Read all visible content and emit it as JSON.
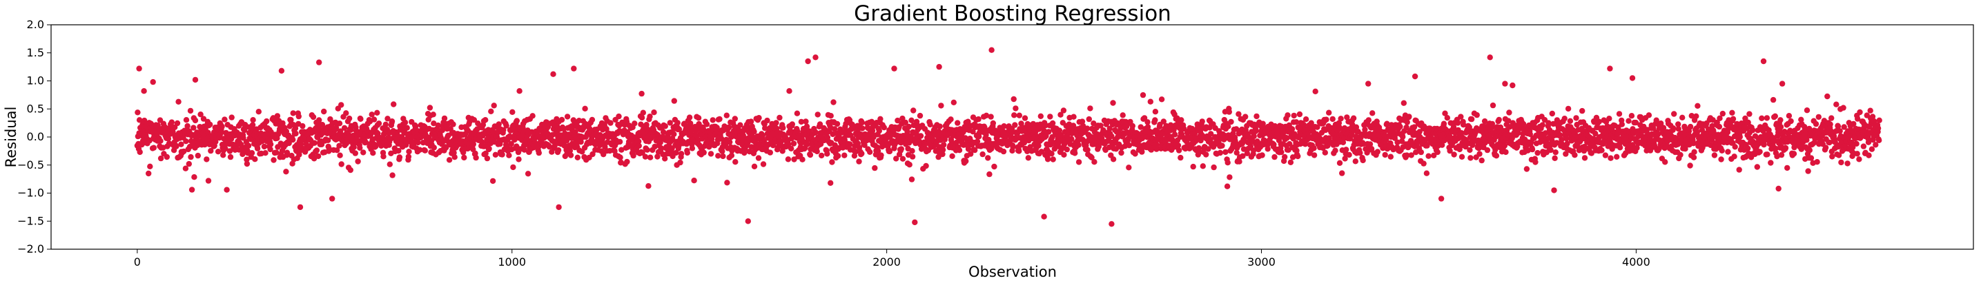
{
  "chart_data": {
    "type": "scatter",
    "title": "Gradient Boosting Regression",
    "xlabel": "Observation",
    "ylabel": "Residual",
    "xlim": [
      -230,
      4900
    ],
    "ylim": [
      -2.0,
      2.0
    ],
    "xticks": [
      0,
      1000,
      2000,
      3000,
      4000
    ],
    "xtick_labels": [
      "0",
      "1000",
      "2000",
      "3000",
      "4000"
    ],
    "yticks": [
      -2.0,
      -1.5,
      -1.0,
      -0.5,
      0.0,
      0.5,
      1.0,
      1.5,
      2.0
    ],
    "ytick_labels": [
      "−2.0",
      "−1.5",
      "−1.0",
      "−0.5",
      "0.0",
      "0.5",
      "1.0",
      "1.5",
      "2.0"
    ],
    "grid": false,
    "color": "#dc143c",
    "n_points": 4650,
    "typical_spread_sd": 0.18,
    "outliers": [
      {
        "x": 5,
        "y": 1.22
      },
      {
        "x": 18,
        "y": 0.82
      },
      {
        "x": 30,
        "y": -0.65
      },
      {
        "x": 42,
        "y": 0.98
      },
      {
        "x": 155,
        "y": 1.02
      },
      {
        "x": 190,
        "y": -0.78
      },
      {
        "x": 385,
        "y": 1.18
      },
      {
        "x": 435,
        "y": -1.25
      },
      {
        "x": 485,
        "y": 1.33
      },
      {
        "x": 520,
        "y": -1.1
      },
      {
        "x": 1020,
        "y": 0.82
      },
      {
        "x": 1110,
        "y": 1.12
      },
      {
        "x": 1125,
        "y": -1.25
      },
      {
        "x": 1165,
        "y": 1.22
      },
      {
        "x": 1630,
        "y": -1.5
      },
      {
        "x": 1740,
        "y": 0.82
      },
      {
        "x": 1790,
        "y": 1.35
      },
      {
        "x": 1810,
        "y": 1.42
      },
      {
        "x": 1850,
        "y": -0.82
      },
      {
        "x": 2020,
        "y": 1.22
      },
      {
        "x": 2075,
        "y": -1.52
      },
      {
        "x": 2140,
        "y": 1.25
      },
      {
        "x": 2280,
        "y": 1.55
      },
      {
        "x": 2420,
        "y": -1.42
      },
      {
        "x": 2600,
        "y": -1.55
      },
      {
        "x": 3410,
        "y": 1.08
      },
      {
        "x": 3480,
        "y": -1.1
      },
      {
        "x": 3610,
        "y": 1.42
      },
      {
        "x": 3650,
        "y": 0.95
      },
      {
        "x": 3670,
        "y": 0.92
      },
      {
        "x": 3930,
        "y": 1.22
      },
      {
        "x": 3990,
        "y": 1.05
      },
      {
        "x": 4340,
        "y": 1.35
      },
      {
        "x": 4390,
        "y": 0.95
      },
      {
        "x": 4380,
        "y": -0.92
      }
    ]
  }
}
